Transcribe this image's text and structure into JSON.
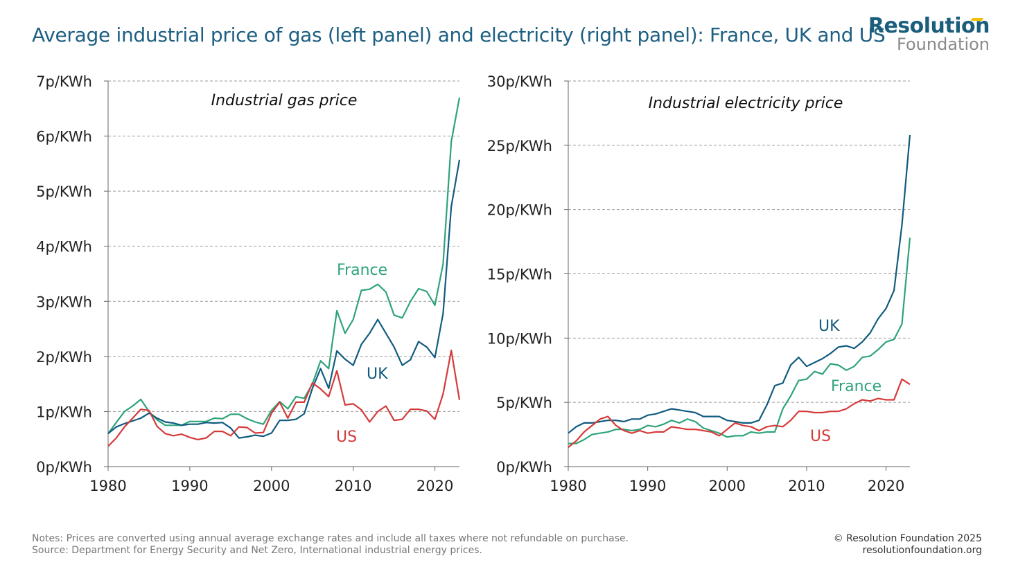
{
  "title": "Average industrial price of gas (left panel) and electricity (right panel): France, UK and US",
  "logo": {
    "line1": "Resolution",
    "line2": "Foundation"
  },
  "notes": "Notes: Prices are converted using annual average exchange rates and include all taxes where not refundable on purchase.",
  "source": "Source: Department for Energy Security and Net Zero, International industrial energy prices.",
  "copyright": "© Resolution Foundation 2025",
  "website": "resolutionfoundation.org",
  "colors": {
    "France": "#2ea37a",
    "UK": "#115b7f",
    "US": "#d53a3a"
  },
  "chart_data": [
    {
      "type": "line",
      "title": "Industrial gas price",
      "xlabel": "",
      "ylabel": "",
      "xlim": [
        1980,
        2023
      ],
      "ylim": [
        0,
        7
      ],
      "x_ticks": [
        1980,
        1990,
        2000,
        2010,
        2020
      ],
      "y_ticks": [
        0,
        1,
        2,
        3,
        4,
        5,
        6,
        7
      ],
      "y_tick_labels": [
        "0p/KWh",
        "1p/KWh",
        "2p/KWh",
        "3p/KWh",
        "4p/KWh",
        "5p/KWh",
        "6p/KWh",
        "7p/KWh"
      ],
      "grid": "horizontal dashed",
      "legend": "inline labels",
      "x": [
        1980,
        1981,
        1982,
        1983,
        1984,
        1985,
        1986,
        1987,
        1988,
        1989,
        1990,
        1991,
        1992,
        1993,
        1994,
        1995,
        1996,
        1997,
        1998,
        1999,
        2000,
        2001,
        2002,
        2003,
        2004,
        2005,
        2006,
        2007,
        2008,
        2009,
        2010,
        2011,
        2012,
        2013,
        2014,
        2015,
        2016,
        2017,
        2018,
        2019,
        2020,
        2021,
        2022,
        2023
      ],
      "series": [
        {
          "name": "France",
          "values": [
            0.6,
            0.8,
            1.0,
            1.1,
            1.22,
            1.0,
            0.85,
            0.75,
            0.75,
            0.75,
            0.82,
            0.82,
            0.82,
            0.88,
            0.87,
            0.95,
            0.95,
            0.87,
            0.81,
            0.77,
            1.02,
            1.18,
            1.05,
            1.27,
            1.24,
            1.5,
            1.92,
            1.78,
            2.83,
            2.42,
            2.67,
            3.2,
            3.22,
            3.31,
            3.17,
            2.75,
            2.7,
            3.0,
            3.23,
            3.18,
            2.93,
            3.68,
            5.9,
            6.7
          ]
        },
        {
          "name": "UK",
          "values": [
            0.6,
            0.72,
            0.78,
            0.83,
            0.88,
            0.97,
            0.88,
            0.81,
            0.79,
            0.75,
            0.77,
            0.77,
            0.8,
            0.79,
            0.8,
            0.7,
            0.52,
            0.54,
            0.57,
            0.55,
            0.61,
            0.84,
            0.84,
            0.86,
            0.96,
            1.42,
            1.78,
            1.42,
            2.1,
            1.95,
            1.84,
            2.22,
            2.42,
            2.67,
            2.42,
            2.17,
            1.84,
            1.94,
            2.27,
            2.17,
            1.98,
            2.78,
            4.72,
            5.57
          ]
        },
        {
          "name": "US",
          "values": [
            0.37,
            0.52,
            0.72,
            0.88,
            1.04,
            1.02,
            0.73,
            0.6,
            0.56,
            0.59,
            0.53,
            0.49,
            0.52,
            0.64,
            0.64,
            0.56,
            0.72,
            0.71,
            0.61,
            0.62,
            0.97,
            1.17,
            0.88,
            1.17,
            1.17,
            1.52,
            1.41,
            1.27,
            1.74,
            1.12,
            1.14,
            1.03,
            0.81,
            1.0,
            1.1,
            0.84,
            0.86,
            1.04,
            1.04,
            1.01,
            0.86,
            1.32,
            2.11,
            1.21
          ]
        }
      ]
    },
    {
      "type": "line",
      "title": "Industrial electricity price",
      "xlabel": "",
      "ylabel": "",
      "xlim": [
        1980,
        2023
      ],
      "ylim": [
        0,
        30
      ],
      "x_ticks": [
        1980,
        1990,
        2000,
        2010,
        2020
      ],
      "y_ticks": [
        0,
        5,
        10,
        15,
        20,
        25,
        30
      ],
      "y_tick_labels": [
        "0p/KWh",
        "5p/KWh",
        "10p/KWh",
        "15p/KWh",
        "20p/KWh",
        "25p/KWh",
        "30p/KWh"
      ],
      "grid": "horizontal dashed",
      "legend": "inline labels",
      "x": [
        1980,
        1981,
        1982,
        1983,
        1984,
        1985,
        1986,
        1987,
        1988,
        1989,
        1990,
        1991,
        1992,
        1993,
        1994,
        1995,
        1996,
        1997,
        1998,
        1999,
        2000,
        2001,
        2002,
        2003,
        2004,
        2005,
        2006,
        2007,
        2008,
        2009,
        2010,
        2011,
        2012,
        2013,
        2014,
        2015,
        2016,
        2017,
        2018,
        2019,
        2020,
        2021,
        2022,
        2023
      ],
      "series": [
        {
          "name": "UK",
          "values": [
            2.6,
            3.1,
            3.4,
            3.4,
            3.5,
            3.6,
            3.6,
            3.5,
            3.7,
            3.7,
            4.0,
            4.1,
            4.3,
            4.5,
            4.4,
            4.3,
            4.2,
            3.9,
            3.9,
            3.9,
            3.6,
            3.5,
            3.4,
            3.4,
            3.6,
            4.8,
            6.3,
            6.5,
            7.9,
            8.5,
            7.8,
            8.1,
            8.4,
            8.8,
            9.3,
            9.4,
            9.2,
            9.7,
            10.4,
            11.5,
            12.3,
            13.7,
            18.8,
            25.8
          ]
        },
        {
          "name": "France",
          "values": [
            1.8,
            1.8,
            2.1,
            2.5,
            2.6,
            2.7,
            2.9,
            2.9,
            2.8,
            2.9,
            3.2,
            3.1,
            3.3,
            3.6,
            3.4,
            3.7,
            3.5,
            3.0,
            2.8,
            2.6,
            2.3,
            2.4,
            2.4,
            2.7,
            2.6,
            2.7,
            2.7,
            4.5,
            5.5,
            6.7,
            6.8,
            7.4,
            7.2,
            8.0,
            7.9,
            7.5,
            7.8,
            8.5,
            8.6,
            9.1,
            9.7,
            9.9,
            11.1,
            17.8
          ]
        },
        {
          "name": "US",
          "values": [
            1.5,
            2.0,
            2.7,
            3.2,
            3.7,
            3.9,
            3.2,
            2.8,
            2.6,
            2.8,
            2.6,
            2.7,
            2.7,
            3.1,
            3.0,
            2.9,
            2.9,
            2.8,
            2.7,
            2.4,
            2.9,
            3.4,
            3.2,
            3.1,
            2.8,
            3.1,
            3.2,
            3.1,
            3.6,
            4.3,
            4.3,
            4.2,
            4.2,
            4.3,
            4.3,
            4.5,
            4.9,
            5.2,
            5.1,
            5.3,
            5.2,
            5.2,
            6.8,
            6.4
          ]
        }
      ]
    }
  ]
}
